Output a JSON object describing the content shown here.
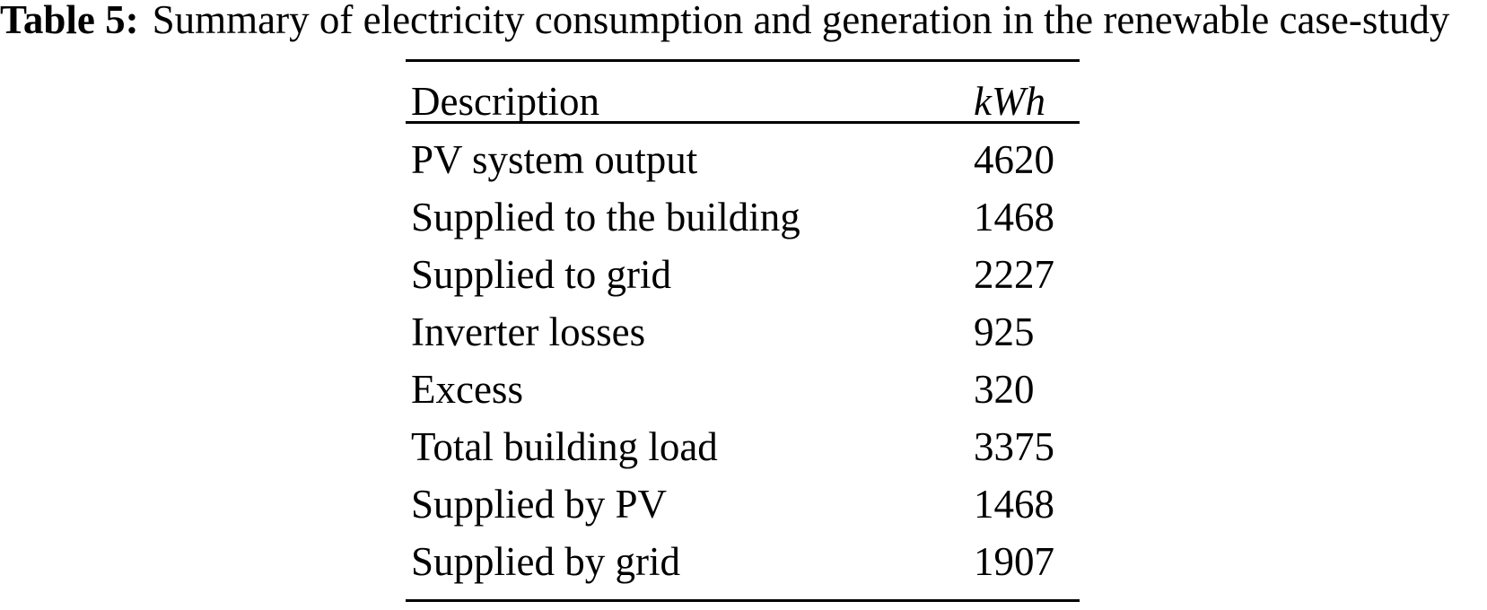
{
  "caption": {
    "label": "Table 5:",
    "text": "Summary of electricity consumption and generation in the renewable case-study"
  },
  "table": {
    "headers": {
      "description": "Description",
      "kwh": "kWh"
    },
    "rows": [
      {
        "description": "PV system output",
        "kwh": "4620"
      },
      {
        "description": "Supplied to the building",
        "kwh": "1468"
      },
      {
        "description": "Supplied to grid",
        "kwh": "2227"
      },
      {
        "description": "Inverter losses",
        "kwh": "925"
      },
      {
        "description": "Excess",
        "kwh": "320"
      },
      {
        "description": "Total building load",
        "kwh": "3375"
      },
      {
        "description": "Supplied by PV",
        "kwh": "1468"
      },
      {
        "description": "Supplied by grid",
        "kwh": "1907"
      }
    ]
  },
  "colors": {
    "text": "#000000",
    "background": "#ffffff",
    "rule": "#000000"
  },
  "chart_data": {
    "type": "table",
    "title": "Table 5: Summary of electricity consumption and generation in the renewable case-study",
    "columns": [
      "Description",
      "kWh"
    ],
    "rows": [
      [
        "PV system output",
        4620
      ],
      [
        "Supplied to the building",
        1468
      ],
      [
        "Supplied to grid",
        2227
      ],
      [
        "Inverter losses",
        925
      ],
      [
        "Excess",
        320
      ],
      [
        "Total building load",
        3375
      ],
      [
        "Supplied by PV",
        1468
      ],
      [
        "Supplied by grid",
        1907
      ]
    ]
  }
}
